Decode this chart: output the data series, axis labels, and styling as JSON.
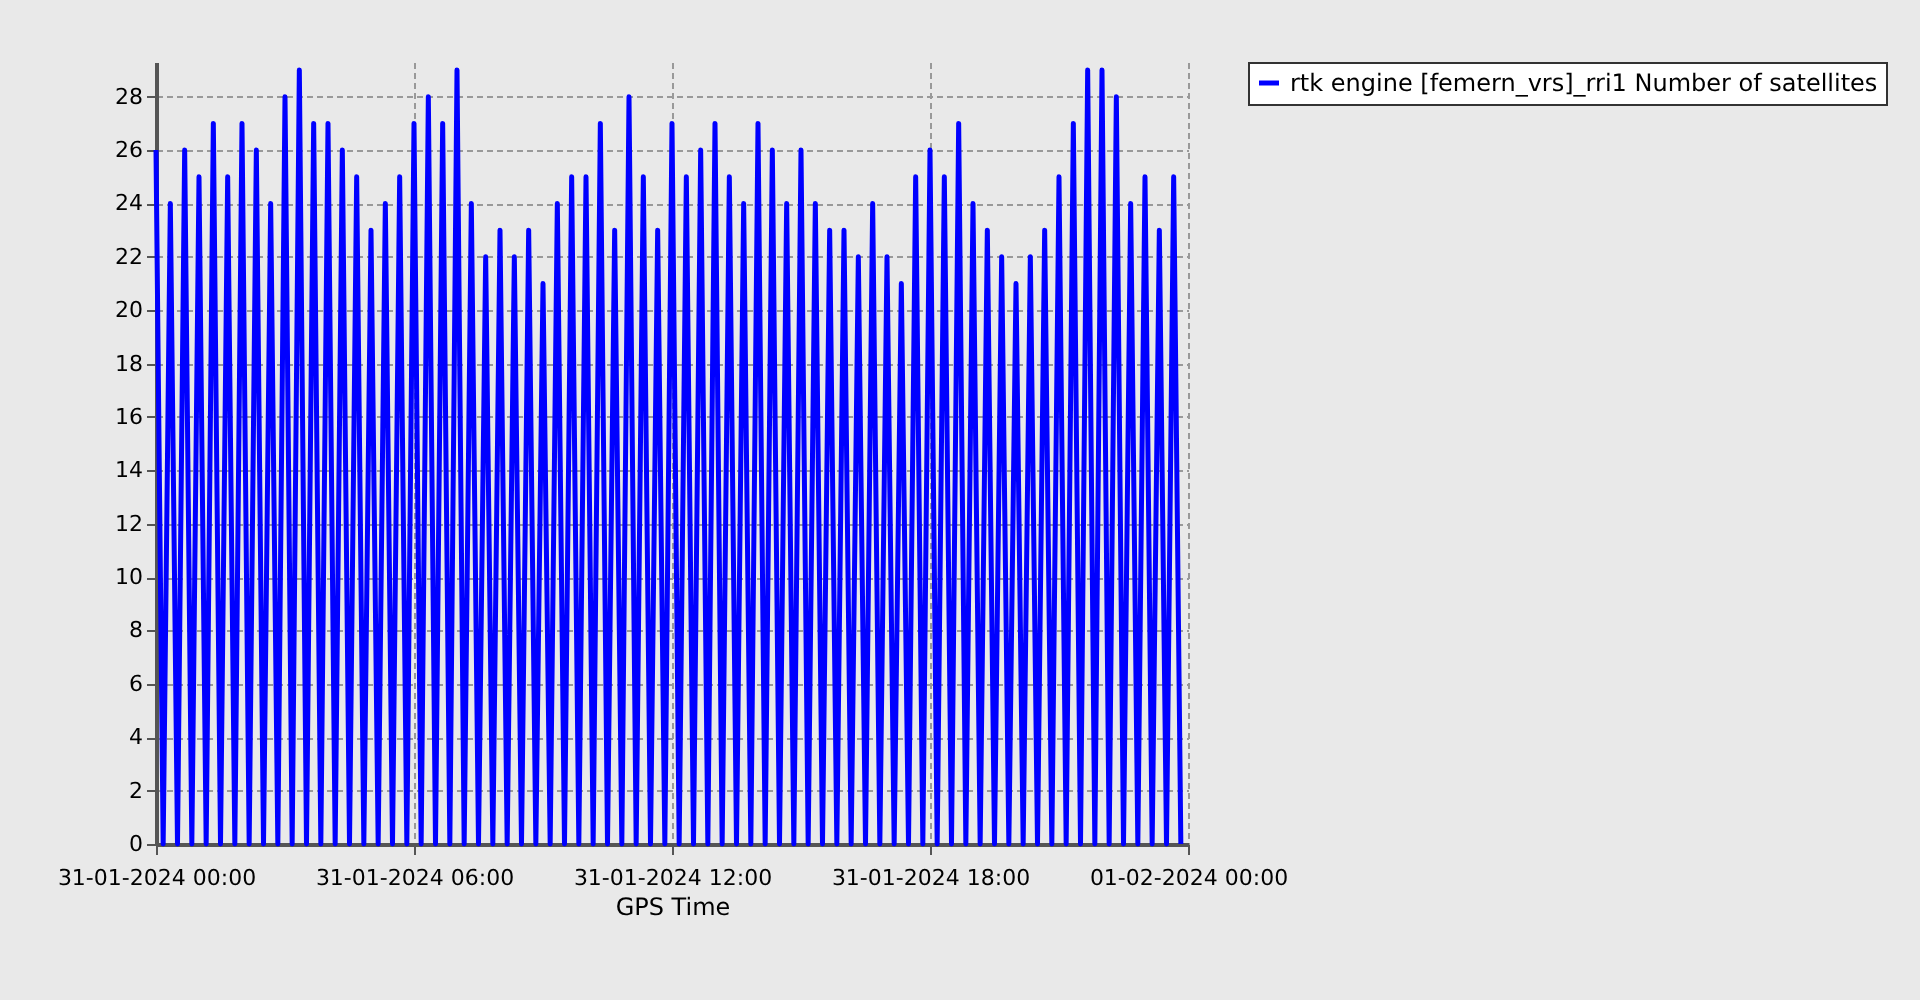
{
  "chart_data": {
    "type": "line",
    "xlabel": "GPS Time",
    "legend": "top right",
    "grid": true,
    "line_style": "solid",
    "xlim": [
      "2024-01-31T00:00",
      "2024-02-01T00:00"
    ],
    "xticks": [
      {
        "value": "2024-01-31T00:00",
        "label": "31-01-2024 00:00"
      },
      {
        "value": "2024-01-31T06:00",
        "label": "31-01-2024 06:00"
      },
      {
        "value": "2024-01-31T12:00",
        "label": "31-01-2024 12:00"
      },
      {
        "value": "2024-01-31T18:00",
        "label": "31-01-2024 18:00"
      },
      {
        "value": "2024-02-01T00:00",
        "label": "01-02-2024 00:00"
      }
    ],
    "ylim": [
      0,
      29.3
    ],
    "yticks": [
      0,
      2,
      4,
      6,
      8,
      10,
      12,
      14,
      16,
      18,
      20,
      22,
      24,
      26,
      28
    ],
    "x": [
      "2024-01-31T00:00",
      "2024-01-31T00:10",
      "2024-01-31T00:20",
      "2024-01-31T00:30",
      "2024-01-31T00:40",
      "2024-01-31T00:50",
      "2024-01-31T01:00",
      "2024-01-31T01:10",
      "2024-01-31T01:20",
      "2024-01-31T01:30",
      "2024-01-31T01:40",
      "2024-01-31T01:50",
      "2024-01-31T02:00",
      "2024-01-31T02:10",
      "2024-01-31T02:20",
      "2024-01-31T02:30",
      "2024-01-31T02:40",
      "2024-01-31T02:50",
      "2024-01-31T03:00",
      "2024-01-31T03:10",
      "2024-01-31T03:20",
      "2024-01-31T03:30",
      "2024-01-31T03:40",
      "2024-01-31T03:50",
      "2024-01-31T04:00",
      "2024-01-31T04:10",
      "2024-01-31T04:20",
      "2024-01-31T04:30",
      "2024-01-31T04:40",
      "2024-01-31T04:50",
      "2024-01-31T05:00",
      "2024-01-31T05:10",
      "2024-01-31T05:20",
      "2024-01-31T05:30",
      "2024-01-31T05:40",
      "2024-01-31T05:50",
      "2024-01-31T06:00",
      "2024-01-31T06:10",
      "2024-01-31T06:20",
      "2024-01-31T06:30",
      "2024-01-31T06:40",
      "2024-01-31T06:50",
      "2024-01-31T07:00",
      "2024-01-31T07:10",
      "2024-01-31T07:20",
      "2024-01-31T07:30",
      "2024-01-31T07:40",
      "2024-01-31T07:50",
      "2024-01-31T08:00",
      "2024-01-31T08:10",
      "2024-01-31T08:20",
      "2024-01-31T08:30",
      "2024-01-31T08:40",
      "2024-01-31T08:50",
      "2024-01-31T09:00",
      "2024-01-31T09:10",
      "2024-01-31T09:20",
      "2024-01-31T09:30",
      "2024-01-31T09:40",
      "2024-01-31T09:50",
      "2024-01-31T10:00",
      "2024-01-31T10:10",
      "2024-01-31T10:20",
      "2024-01-31T10:30",
      "2024-01-31T10:40",
      "2024-01-31T10:50",
      "2024-01-31T11:00",
      "2024-01-31T11:10",
      "2024-01-31T11:20",
      "2024-01-31T11:30",
      "2024-01-31T11:40",
      "2024-01-31T11:50",
      "2024-01-31T12:00",
      "2024-01-31T12:10",
      "2024-01-31T12:20",
      "2024-01-31T12:30",
      "2024-01-31T12:40",
      "2024-01-31T12:50",
      "2024-01-31T13:00",
      "2024-01-31T13:10",
      "2024-01-31T13:20",
      "2024-01-31T13:30",
      "2024-01-31T13:40",
      "2024-01-31T13:50",
      "2024-01-31T14:00",
      "2024-01-31T14:10",
      "2024-01-31T14:20",
      "2024-01-31T14:30",
      "2024-01-31T14:40",
      "2024-01-31T14:50",
      "2024-01-31T15:00",
      "2024-01-31T15:10",
      "2024-01-31T15:20",
      "2024-01-31T15:30",
      "2024-01-31T15:40",
      "2024-01-31T15:50",
      "2024-01-31T16:00",
      "2024-01-31T16:10",
      "2024-01-31T16:20",
      "2024-01-31T16:30",
      "2024-01-31T16:40",
      "2024-01-31T16:50",
      "2024-01-31T17:00",
      "2024-01-31T17:10",
      "2024-01-31T17:20",
      "2024-01-31T17:30",
      "2024-01-31T17:40",
      "2024-01-31T17:50",
      "2024-01-31T18:00",
      "2024-01-31T18:10",
      "2024-01-31T18:20",
      "2024-01-31T18:30",
      "2024-01-31T18:40",
      "2024-01-31T18:50",
      "2024-01-31T19:00",
      "2024-01-31T19:10",
      "2024-01-31T19:20",
      "2024-01-31T19:30",
      "2024-01-31T19:40",
      "2024-01-31T19:50",
      "2024-01-31T20:00",
      "2024-01-31T20:10",
      "2024-01-31T20:20",
      "2024-01-31T20:30",
      "2024-01-31T20:40",
      "2024-01-31T20:50",
      "2024-01-31T21:00",
      "2024-01-31T21:10",
      "2024-01-31T21:20",
      "2024-01-31T21:30",
      "2024-01-31T21:40",
      "2024-01-31T21:50",
      "2024-01-31T22:00",
      "2024-01-31T22:10",
      "2024-01-31T22:20",
      "2024-01-31T22:30",
      "2024-01-31T22:40",
      "2024-01-31T22:50",
      "2024-01-31T23:00",
      "2024-01-31T23:10",
      "2024-01-31T23:20",
      "2024-01-31T23:30",
      "2024-01-31T23:40",
      "2024-01-31T23:50"
    ],
    "series": [
      {
        "name": "rtk engine [femern_vrs]_rri1 Number of satellites",
        "color": "#0000ff",
        "values": [
          26,
          0,
          24,
          0,
          26,
          0,
          25,
          0,
          27,
          0,
          25,
          0,
          27,
          0,
          26,
          0,
          24,
          0,
          28,
          0,
          29,
          0,
          27,
          0,
          27,
          0,
          26,
          0,
          25,
          0,
          23,
          0,
          24,
          0,
          25,
          0,
          27,
          0,
          28,
          0,
          27,
          0,
          29,
          0,
          24,
          0,
          22,
          0,
          23,
          0,
          22,
          0,
          23,
          0,
          21,
          0,
          24,
          0,
          25,
          0,
          25,
          0,
          27,
          0,
          23,
          0,
          28,
          0,
          25,
          0,
          23,
          0,
          27,
          0,
          25,
          0,
          26,
          0,
          27,
          0,
          25,
          0,
          24,
          0,
          27,
          0,
          26,
          0,
          24,
          0,
          26,
          0,
          24,
          0,
          23,
          0,
          23,
          0,
          22,
          0,
          24,
          0,
          22,
          0,
          21,
          0,
          25,
          0,
          26,
          0,
          25,
          0,
          27,
          0,
          24,
          0,
          23,
          0,
          22,
          0,
          21,
          0,
          22,
          0,
          23,
          0,
          25,
          0,
          27,
          0,
          29,
          0,
          29,
          0,
          28,
          0,
          24,
          0,
          25,
          0,
          23,
          0,
          25,
          0
        ]
      }
    ]
  }
}
